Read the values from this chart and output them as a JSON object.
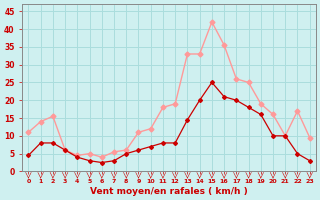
{
  "xlabel": "Vent moyen/en rafales ( km/h )",
  "ylabel": "",
  "bg_color": "#cff0f0",
  "grid_color": "#aadddd",
  "x_ticks": [
    0,
    1,
    2,
    3,
    4,
    5,
    6,
    7,
    8,
    9,
    10,
    11,
    12,
    13,
    14,
    15,
    16,
    17,
    18,
    19,
    20,
    21,
    22,
    23
  ],
  "ylim": [
    0,
    47
  ],
  "y_ticks": [
    0,
    5,
    10,
    15,
    20,
    25,
    30,
    35,
    40,
    45
  ],
  "vent_moyen": [
    4.5,
    8,
    8,
    6,
    4,
    3,
    2.5,
    3,
    5,
    6,
    7,
    8,
    8,
    14.5,
    20,
    25,
    21,
    20,
    18,
    16,
    10,
    10,
    5,
    3
  ],
  "rafales": [
    11,
    14,
    15.5,
    6,
    4.5,
    5,
    4,
    5.5,
    6,
    11,
    12,
    18,
    19,
    33,
    33,
    42,
    35.5,
    26,
    25,
    19,
    16,
    10,
    17,
    9.5
  ],
  "moyen_color": "#cc0000",
  "rafales_color": "#ff9999",
  "wind_arrow_color": "#cc0000",
  "tick_label_color": "#cc0000",
  "xlabel_color": "#cc0000",
  "ylabel_color": "#cc0000",
  "axis_color": "#888888"
}
